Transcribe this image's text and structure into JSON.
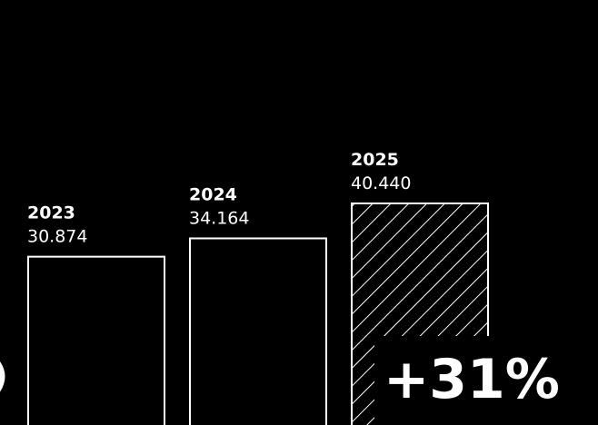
{
  "chart_data": {
    "type": "bar",
    "title": "",
    "xlabel": "",
    "ylabel": "",
    "categories": [
      "2023",
      "2024",
      "2025"
    ],
    "values": [
      30874,
      34164,
      40440
    ],
    "value_labels": [
      "30.874",
      "34.164",
      "40.440"
    ],
    "highlighted_category": "2025",
    "growth_label": "+31%",
    "ylim": [
      0,
      40440
    ],
    "grid": false,
    "legend": "none",
    "colors": {
      "background": "#000000",
      "bar_outline": "#ffffff",
      "text": "#ffffff"
    }
  }
}
